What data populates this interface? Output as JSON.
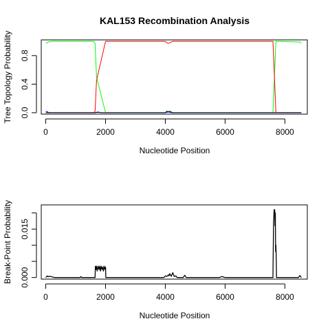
{
  "chart_data": [
    {
      "type": "line",
      "title": "KAL153 Recombination Analysis",
      "xlabel": "Nucleotide Position",
      "ylabel": "Tree Topology Probability",
      "xlim": [
        -150,
        8750
      ],
      "ylim": [
        -0.02,
        1.02
      ],
      "xticks": [
        0,
        2000,
        4000,
        6000,
        8000
      ],
      "yticks": [
        0.0,
        0.4,
        0.8
      ],
      "ytick_labels": [
        "0.0",
        "0.4",
        "0.8"
      ],
      "grid": false,
      "series": [
        {
          "color": "#00ff00",
          "x": [
            0,
            80,
            200,
            1600,
            1650,
            1700,
            2000,
            4000,
            4100,
            4200,
            7600,
            7650,
            7700,
            8500,
            8550
          ],
          "y": [
            0.97,
            0.99,
            1.0,
            1.0,
            0.97,
            0.5,
            0.0,
            0.0,
            0.02,
            0.0,
            0.0,
            0.5,
            1.0,
            0.99,
            0.97
          ]
        },
        {
          "color": "#ff0000",
          "x": [
            0,
            1600,
            1650,
            1700,
            2000,
            4000,
            4050,
            4100,
            4150,
            4250,
            7600,
            7650,
            7700,
            8550
          ],
          "y": [
            0.0,
            0.0,
            0.02,
            0.45,
            1.0,
            1.0,
            0.98,
            0.97,
            0.98,
            1.0,
            1.0,
            0.5,
            0.0,
            0.0
          ]
        },
        {
          "color": "#0000ff",
          "x": [
            0,
            50,
            100,
            300,
            1650,
            1750,
            1850,
            4000,
            4100,
            4200,
            8550
          ],
          "y": [
            0.02,
            0.015,
            0.0,
            0.0,
            0.0,
            0.01,
            0.0,
            0.0,
            0.01,
            0.0,
            0.0
          ]
        },
        {
          "color": "#000000",
          "x": [
            0,
            1650,
            1750,
            1850,
            4000,
            4050,
            4100,
            4150,
            4250,
            8550
          ],
          "y": [
            0.0,
            0.0,
            0.005,
            0.0,
            0.0,
            0.02,
            0.01,
            0.02,
            0.0,
            0.0
          ]
        }
      ]
    },
    {
      "type": "line",
      "xlabel": "Nucleotide Position",
      "ylabel": "Break-Point Probability",
      "xlim": [
        -150,
        8750
      ],
      "ylim": [
        -0.0005,
        0.0225
      ],
      "xticks": [
        0,
        2000,
        4000,
        6000,
        8000
      ],
      "yticks": [
        0.0,
        0.005,
        0.01,
        0.015,
        0.02
      ],
      "ytick_labels": [
        "0.000",
        "",
        "",
        "0.015",
        ""
      ],
      "grid": false,
      "series": [
        {
          "color": "#000000",
          "x": [
            0,
            50,
            80,
            120,
            300,
            1150,
            1180,
            1200,
            1650,
            1660,
            1680,
            1700,
            1720,
            1750,
            1780,
            1800,
            1830,
            1850,
            1880,
            1900,
            1930,
            1950,
            1980,
            2000,
            2010,
            2100,
            3950,
            4000,
            4050,
            4100,
            4120,
            4150,
            4180,
            4200,
            4250,
            4300,
            4350,
            4400,
            4600,
            4650,
            4700,
            5800,
            5900,
            6000,
            7550,
            7600,
            7620,
            7640,
            7650,
            7660,
            7670,
            7680,
            7690,
            7700,
            7710,
            7720,
            7740,
            7800,
            8450,
            8500,
            8550
          ],
          "y": [
            0.0,
            0.0005,
            0.0002,
            0.0004,
            0.0,
            0.0,
            0.0003,
            0.0,
            0.0,
            0.0035,
            0.0025,
            0.0035,
            0.002,
            0.0035,
            0.0025,
            0.0035,
            0.002,
            0.0035,
            0.0025,
            0.0033,
            0.002,
            0.0035,
            0.0025,
            0.0033,
            0.0,
            0.0,
            0.0,
            0.0005,
            0.0003,
            0.0008,
            0.0005,
            0.0012,
            0.0006,
            0.0004,
            0.0015,
            0.0003,
            0.0005,
            0.0,
            0.0,
            0.0007,
            0.0,
            0.0,
            0.0003,
            0.0,
            0.0,
            0.0,
            0.017,
            0.021,
            0.019,
            0.021,
            0.016,
            0.02,
            0.008,
            0.01,
            0.006,
            0.0,
            0.0,
            0.0,
            0.0,
            0.0006,
            0.0
          ]
        }
      ]
    }
  ]
}
